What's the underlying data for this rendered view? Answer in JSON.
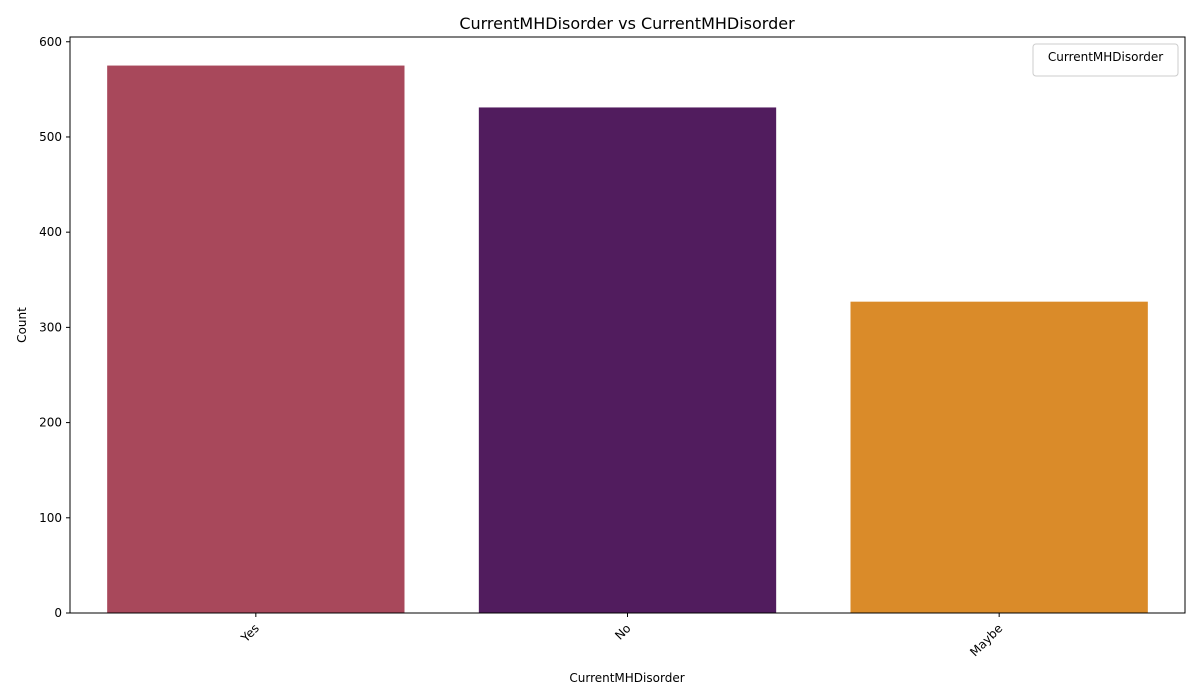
{
  "chart_data": {
    "type": "bar",
    "title": "CurrentMHDisorder vs CurrentMHDisorder",
    "xlabel": "CurrentMHDisorder",
    "ylabel": "Count",
    "categories": [
      "Yes",
      "No",
      "Maybe"
    ],
    "values": [
      575,
      531,
      327
    ],
    "colors": [
      "#a8485b",
      "#511c5e",
      "#da8b29"
    ],
    "ylim": [
      0,
      605
    ],
    "yticks": [
      0,
      100,
      200,
      300,
      400,
      500,
      600
    ],
    "legend": {
      "title": "CurrentMHDisorder",
      "placement": "top-right"
    },
    "grid": false,
    "xtick_rotation": "45"
  }
}
